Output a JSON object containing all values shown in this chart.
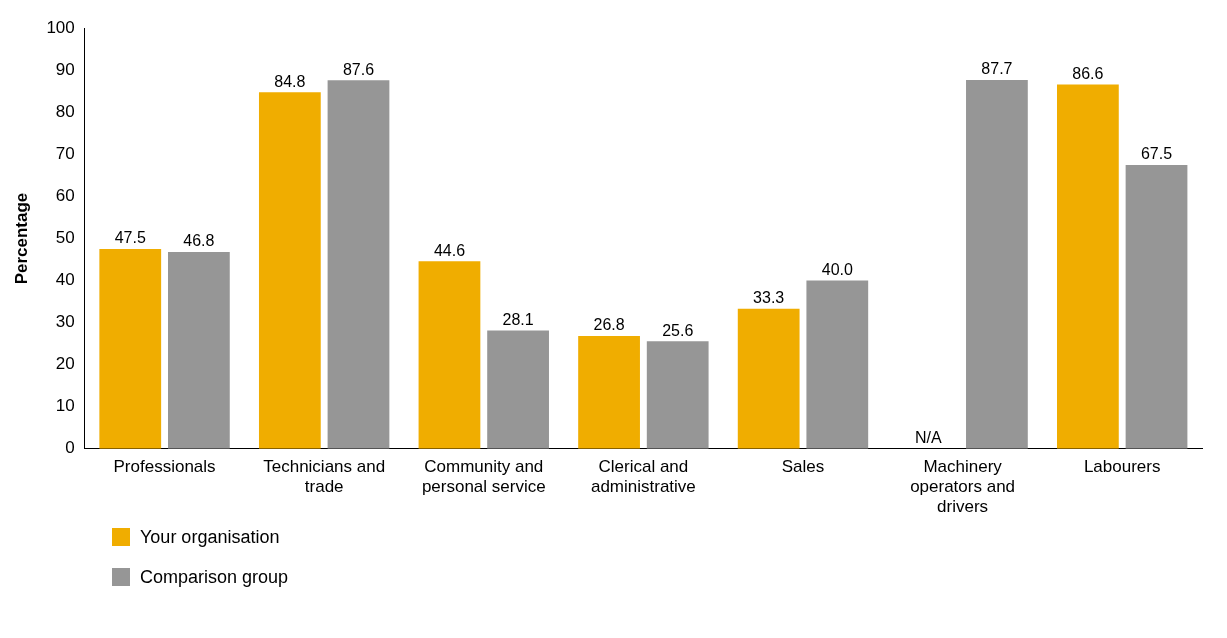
{
  "chart_data": {
    "type": "bar",
    "ylabel": "Percentage",
    "categories": [
      "Professionals",
      "Technicians and trade",
      "Community and personal service",
      "Clerical and administrative",
      "Sales",
      "Machinery operators and drivers",
      "Labourers"
    ],
    "series": [
      {
        "name": "Your organisation",
        "color": "#f0ad00",
        "values": [
          47.5,
          84.8,
          44.6,
          26.8,
          33.3,
          null,
          86.6
        ],
        "value_labels": [
          "47.5",
          "84.8",
          "44.6",
          "26.8",
          "33.3",
          "N/A",
          "86.6"
        ]
      },
      {
        "name": "Comparison group",
        "color": "#969696",
        "values": [
          46.8,
          87.6,
          28.1,
          25.6,
          40.0,
          87.7,
          67.5
        ],
        "value_labels": [
          "46.8",
          "87.6",
          "28.1",
          "25.6",
          "40.0",
          "87.7",
          "67.5"
        ]
      }
    ],
    "ylim": [
      0,
      100
    ],
    "yticks": [
      0,
      10,
      20,
      30,
      40,
      50,
      60,
      70,
      80,
      90,
      100
    ],
    "grid": false,
    "legend": "bottom left"
  }
}
